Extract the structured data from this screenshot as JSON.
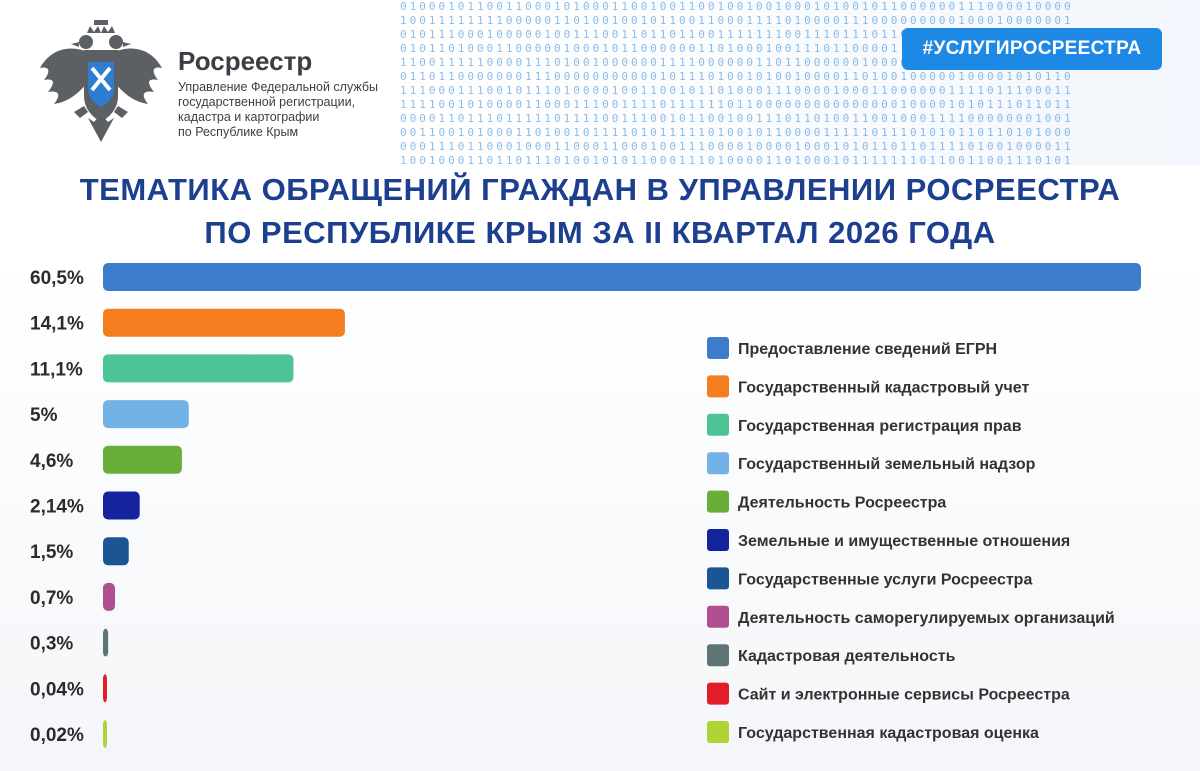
{
  "brand": {
    "name": "Росреестр",
    "subtitle_lines": [
      "Управление Федеральной службы",
      "государственной регистрации,",
      "кадастра и картографии",
      "по Республике Крым"
    ]
  },
  "hashtag": "#УСЛУГИРОСРЕЕСТРА",
  "title_lines": [
    "ТЕМАТИКА ОБРАЩЕНИЙ ГРАЖДАН  В УПРАВЛЕНИИ РОСРЕЕСТРА",
    "ПО РЕСПУБЛИКЕ КРЫМ ЗА II КВАРТАЛ 2026 ГОДА"
  ],
  "colors": {
    "title": "#1c3f90",
    "hashtag_bg": "#1e88e5",
    "brand_text": "#3b3f45"
  },
  "chart_data": {
    "type": "bar",
    "orientation": "horizontal",
    "title": "",
    "xlabel": "",
    "ylabel": "",
    "xlim": [
      0,
      60.5
    ],
    "grid": false,
    "legend_position": "right",
    "categories": [
      "Предоставление сведений ЕГРН",
      "Государственный кадастровый учет",
      "Государственная регистрация прав",
      "Государственный земельный надзор",
      "Деятельность Росреестра",
      "Земельные и имущественные отношения",
      "Государственные услуги Росреестра",
      "Деятельность саморегулируемых организаций",
      "Кадастровая деятельность",
      "Сайт и электронные сервисы Росреестра",
      "Государственная кадастровая оценка"
    ],
    "values": [
      60.5,
      14.1,
      11.1,
      5,
      4.6,
      2.14,
      1.5,
      0.7,
      0.3,
      0.04,
      0.02
    ],
    "value_labels": [
      "60,5%",
      "14,1%",
      "11,1%",
      "5%",
      "4,6%",
      "2,14%",
      "1,5%",
      "0,7%",
      "0,3%",
      "0,04%",
      "0,02%"
    ],
    "colors": [
      "#3d7cc9",
      "#f47d20",
      "#4cc496",
      "#72b2e6",
      "#6aae3a",
      "#15249c",
      "#1b5594",
      "#b04f90",
      "#5f7476",
      "#e11d2b",
      "#b0d336"
    ]
  }
}
